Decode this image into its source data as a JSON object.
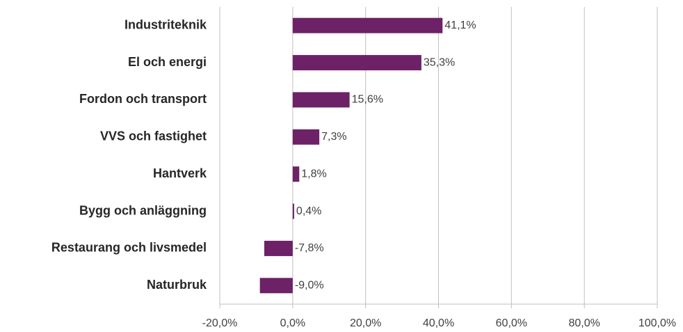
{
  "chart_data": {
    "type": "barh",
    "categories": [
      "Industriteknik",
      "El och energi",
      "Fordon och transport",
      "VVS och fastighet",
      "Hantverk",
      "Bygg och anläggning",
      "Restaurang och livsmedel",
      "Naturbruk"
    ],
    "values": [
      41.1,
      35.3,
      15.6,
      7.3,
      1.8,
      0.4,
      -7.8,
      -9.0
    ],
    "value_labels": [
      "41,1%",
      "35,3%",
      "15,6%",
      "7,3%",
      "1,8%",
      "0,4%",
      "-7,8%",
      "-9,0%"
    ],
    "color": "#6d2167",
    "xlim": [
      -20,
      100
    ],
    "xticks": [
      {
        "value": -20,
        "label": "-20,0%"
      },
      {
        "value": 0,
        "label": "0,0%"
      },
      {
        "value": 20,
        "label": "20,0%"
      },
      {
        "value": 40,
        "label": "40,0%"
      },
      {
        "value": 60,
        "label": "60,0%"
      },
      {
        "value": 80,
        "label": "80,0%"
      },
      {
        "value": 100,
        "label": "100,0%"
      }
    ],
    "grid": true
  }
}
